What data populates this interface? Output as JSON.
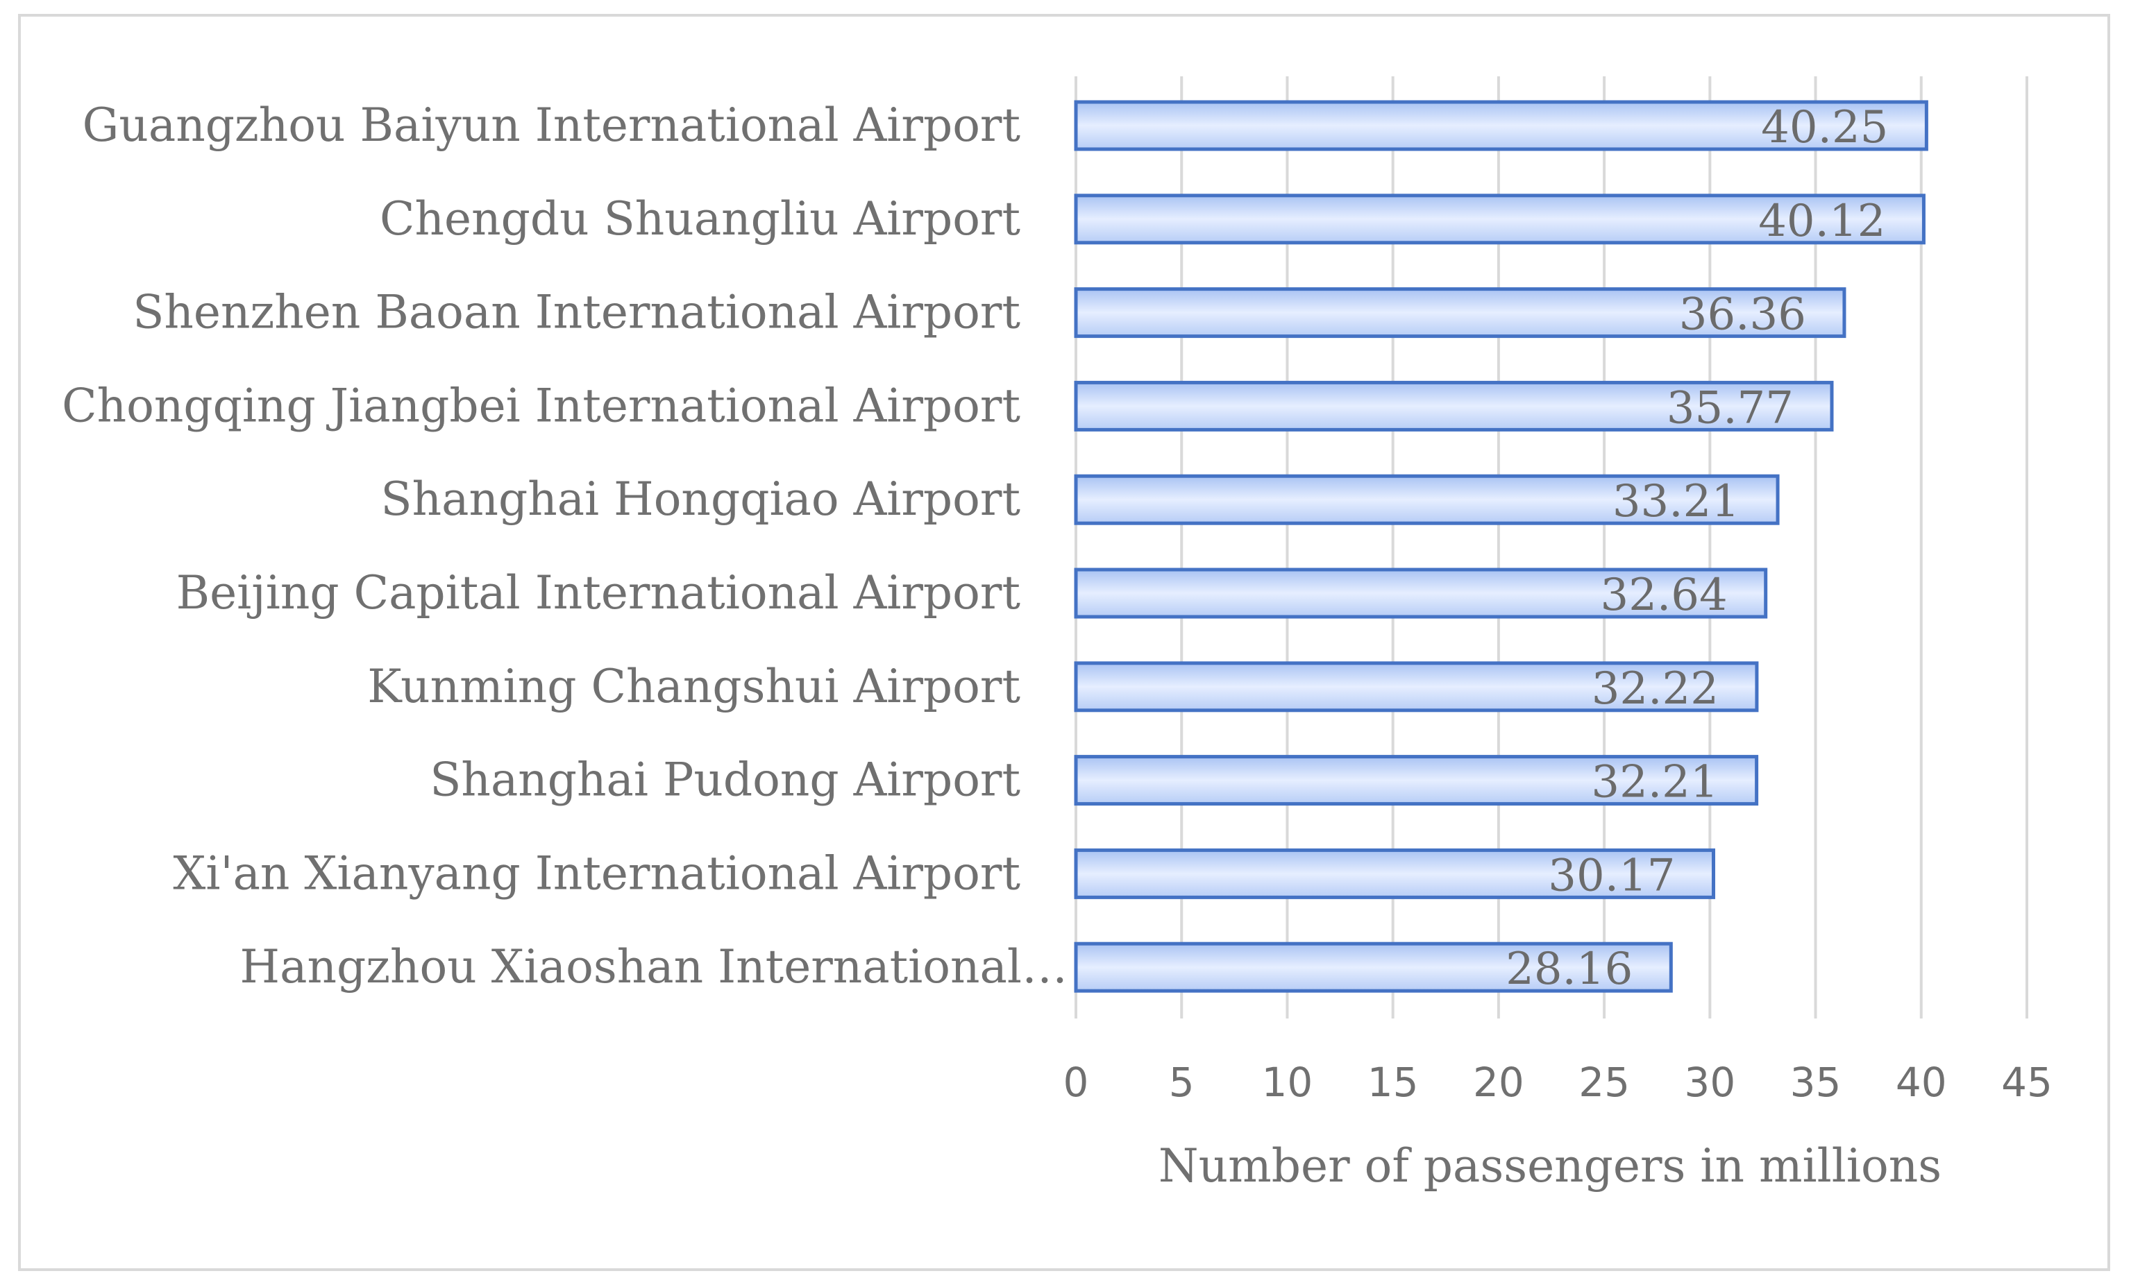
{
  "chart_data": {
    "type": "bar",
    "orientation": "horizontal",
    "categories": [
      "Guangzhou Baiyun International Airport",
      "Chengdu Shuangliu Airport",
      "Shenzhen Baoan International Airport",
      "Chongqing Jiangbei International Airport",
      "Shanghai Hongqiao Airport",
      "Beijing Capital International Airport",
      "Kunming Changshui Airport",
      "Shanghai Pudong Airport",
      "Xi'an Xianyang International Airport",
      "Hangzhou Xiaoshan International…"
    ],
    "values": [
      40.25,
      40.12,
      36.36,
      35.77,
      33.21,
      32.64,
      32.22,
      32.21,
      30.17,
      28.16
    ],
    "value_labels": [
      "40.25",
      "40.12",
      "36.36",
      "35.77",
      "33.21",
      "32.64",
      "32.22",
      "32.21",
      "30.17",
      "28.16"
    ],
    "xlabel": "Number of passengers in millions",
    "xlim": [
      0,
      45
    ],
    "xticks": [
      "0",
      "5",
      "10",
      "15",
      "20",
      "25",
      "30",
      "35",
      "40",
      "45"
    ],
    "grid": "vertical",
    "legend": "none",
    "colors": {
      "bar_fill_top": "#a9c3f3",
      "bar_fill_mid": "#e6eeff",
      "bar_fill_bottom": "#b7cdf6",
      "bar_stroke": "#4472c4",
      "grid": "#d9d9d9",
      "text": "#707070"
    }
  }
}
